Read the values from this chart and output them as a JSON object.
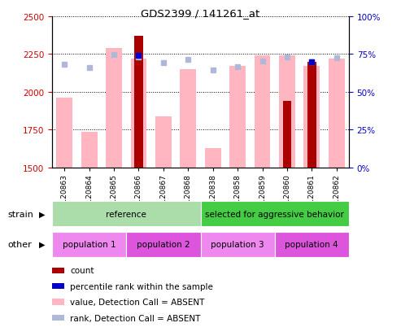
{
  "title": "GDS2399 / 141261_at",
  "samples": [
    "GSM120863",
    "GSM120864",
    "GSM120865",
    "GSM120866",
    "GSM120867",
    "GSM120868",
    "GSM120838",
    "GSM120858",
    "GSM120859",
    "GSM120860",
    "GSM120861",
    "GSM120862"
  ],
  "count_values": [
    null,
    null,
    null,
    2370,
    null,
    null,
    null,
    null,
    null,
    1940,
    2200,
    null
  ],
  "value_absent": [
    1960,
    1735,
    2290,
    2220,
    1840,
    2150,
    1630,
    2170,
    2240,
    2240,
    2170,
    2220
  ],
  "rank_absent_y": [
    2180,
    2160,
    2245,
    2230,
    2190,
    2215,
    2145,
    2165,
    2205,
    2230,
    2200,
    2225
  ],
  "percentile_rank": [
    null,
    null,
    null,
    2240,
    null,
    null,
    null,
    null,
    null,
    null,
    2200,
    null
  ],
  "percentile_rank_dark": [
    null,
    null,
    null,
    true,
    null,
    null,
    null,
    null,
    null,
    null,
    true,
    null
  ],
  "ylim_left": [
    1500,
    2500
  ],
  "ylim_right": [
    0,
    100
  ],
  "yticks_left": [
    1500,
    1750,
    2000,
    2250,
    2500
  ],
  "yticks_right": [
    0,
    25,
    50,
    75,
    100
  ],
  "strain_groups": [
    {
      "label": "reference",
      "start": 0,
      "end": 6,
      "color": "#aaddaa"
    },
    {
      "label": "selected for aggressive behavior",
      "start": 6,
      "end": 12,
      "color": "#44cc44"
    }
  ],
  "other_groups": [
    {
      "label": "population 1",
      "start": 0,
      "end": 3,
      "color": "#ee88ee"
    },
    {
      "label": "population 2",
      "start": 3,
      "end": 6,
      "color": "#dd55dd"
    },
    {
      "label": "population 3",
      "start": 6,
      "end": 9,
      "color": "#ee88ee"
    },
    {
      "label": "population 4",
      "start": 9,
      "end": 12,
      "color": "#dd55dd"
    }
  ],
  "count_color": "#AA0000",
  "value_absent_color": "#FFB6C1",
  "rank_absent_color": "#B0B8D8",
  "percentile_dark_color": "#0000CC",
  "percentile_light_color": "#9999DD",
  "left_label_color": "#CC0000",
  "right_label_color": "#0000CC",
  "legend_items": [
    {
      "color": "#AA0000",
      "label": "count"
    },
    {
      "color": "#0000CC",
      "label": "percentile rank within the sample"
    },
    {
      "color": "#FFB6C1",
      "label": "value, Detection Call = ABSENT"
    },
    {
      "color": "#B0B8D8",
      "label": "rank, Detection Call = ABSENT"
    }
  ]
}
